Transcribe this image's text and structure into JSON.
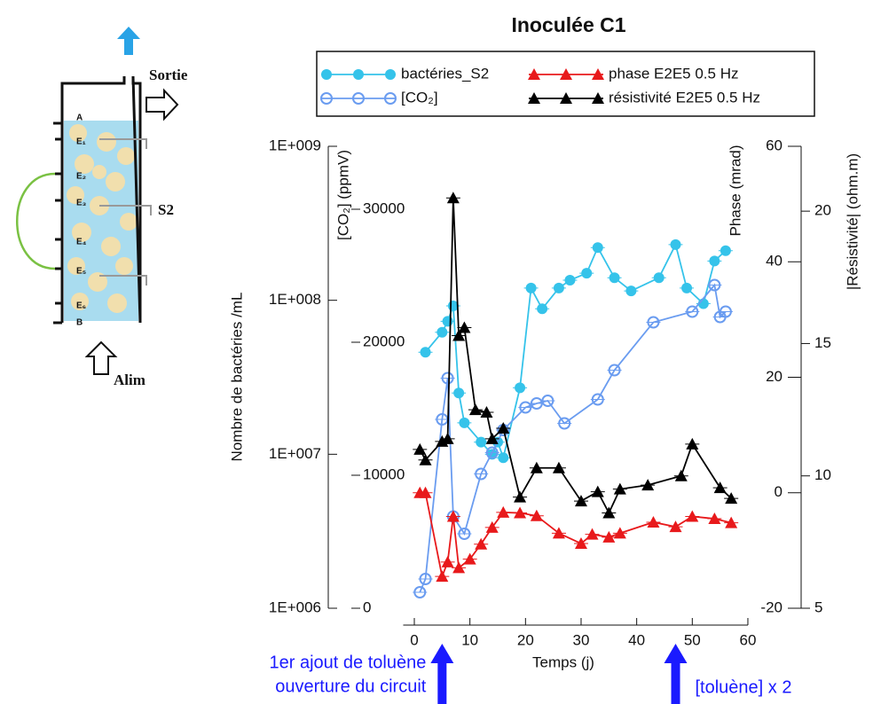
{
  "chart_data": {
    "type": "line",
    "title": "Inoculée C1",
    "xlabel": "Temps (j)",
    "ylabel": "Nombre de bactéries /mL",
    "y2label": "[CO₂] (ppmV)",
    "y3label": "Phase (mrad)",
    "y4label": "|Résistivité| (ohm.m)",
    "xlim": [
      -2,
      60
    ],
    "xticks": [
      0,
      10,
      20,
      30,
      40,
      50,
      60
    ],
    "yscale": "log",
    "ylim": [
      1000000,
      1000000000
    ],
    "yticks": [
      {
        "value": 1000000,
        "label": "1E+006"
      },
      {
        "value": 10000000,
        "label": "1E+007"
      },
      {
        "value": 100000000,
        "label": "1E+008"
      },
      {
        "value": 1000000000,
        "label": "1E+009"
      }
    ],
    "y2lim": [
      0,
      34733
    ],
    "y2ticks": [
      0,
      10000,
      20000,
      30000
    ],
    "y3lim": [
      -20,
      60
    ],
    "y3ticks": [
      -20,
      0,
      20,
      40,
      60
    ],
    "y4lim": [
      5,
      22.45
    ],
    "y4ticks": [
      5,
      10,
      15,
      20
    ],
    "legend": "top",
    "series": [
      {
        "name": "bactéries_S2",
        "color": "#35c3ea",
        "marker": "filled-circle",
        "axis": "y",
        "x": [
          2,
          5,
          6,
          7,
          8,
          9,
          12,
          14,
          15,
          16,
          19,
          21,
          23,
          26,
          28,
          31,
          33,
          36,
          39,
          44,
          47,
          49,
          52,
          54,
          56
        ],
        "values": [
          46000000,
          62000000,
          73000000,
          92000000,
          25000000,
          16000000,
          12000000,
          10000000,
          12000000,
          9500000,
          27000000,
          120000000,
          88000000,
          120000000,
          135000000,
          150000000,
          220000000,
          140000000,
          115000000,
          140000000,
          230000000,
          120000000,
          95000000,
          180000000,
          210000000
        ]
      },
      {
        "name": "[CO₂]",
        "color": "#6a9cf0",
        "marker": "open-circle",
        "axis": "y2",
        "x": [
          1,
          2,
          5,
          6,
          7,
          9,
          12,
          14,
          16,
          20,
          22,
          24,
          27,
          33,
          36,
          43,
          50,
          54,
          55,
          56
        ],
        "values": [
          1200,
          2200,
          14200,
          17300,
          6900,
          5600,
          10100,
          11700,
          13400,
          15100,
          15400,
          15600,
          13900,
          15700,
          17900,
          21500,
          22300,
          24300,
          21900,
          22300
        ]
      },
      {
        "name": "phase E2E5 0.5 Hz",
        "color": "#e8191b",
        "marker": "triangle",
        "axis": "y3",
        "x": [
          1,
          2,
          5,
          6,
          7,
          8,
          10,
          12,
          14,
          16,
          19,
          22,
          26,
          30,
          32,
          35,
          37,
          43,
          47,
          50,
          54,
          57
        ],
        "values": [
          0,
          0,
          -14.5,
          -12,
          -4.1,
          -13,
          -11.5,
          -8.9,
          -6,
          -3.4,
          -3.5,
          -4,
          -7,
          -8.8,
          -7.2,
          -7.7,
          -7,
          -5.1,
          -5.9,
          -4.1,
          -4.5,
          -5.2
        ]
      },
      {
        "name": "résistivité E2E5 0.5 Hz",
        "color": "#000000",
        "marker": "triangle",
        "axis": "y4",
        "x": [
          1,
          2,
          5,
          6,
          7,
          8,
          9,
          11,
          13,
          14,
          16,
          19,
          22,
          26,
          30,
          33,
          35,
          37,
          42,
          48,
          50,
          55,
          57
        ],
        "values": [
          11,
          10.6,
          11.3,
          11.4,
          20.5,
          15.3,
          15.6,
          12.5,
          12.4,
          11.4,
          11.8,
          9.2,
          10.3,
          10.3,
          9.05,
          9.4,
          8.6,
          9.5,
          9.65,
          10,
          11.2,
          9.55,
          9.15
        ]
      }
    ],
    "annotations": [
      {
        "text": [
          "1er ajout de toluène",
          "ouverture du circuit"
        ],
        "x": 5,
        "color": "#1a1aff"
      },
      {
        "text": [
          "[toluène] x 2"
        ],
        "x": 47,
        "color": "#1a1aff"
      }
    ]
  },
  "diagram": {
    "labels": {
      "outlet": "Sortie",
      "sample": "S2",
      "inlet": "Alim",
      "top": "A",
      "bottom": "B",
      "electrodes": [
        "E₁",
        "E₂",
        "E₃",
        "E₄",
        "E₅",
        "E₆"
      ]
    }
  }
}
